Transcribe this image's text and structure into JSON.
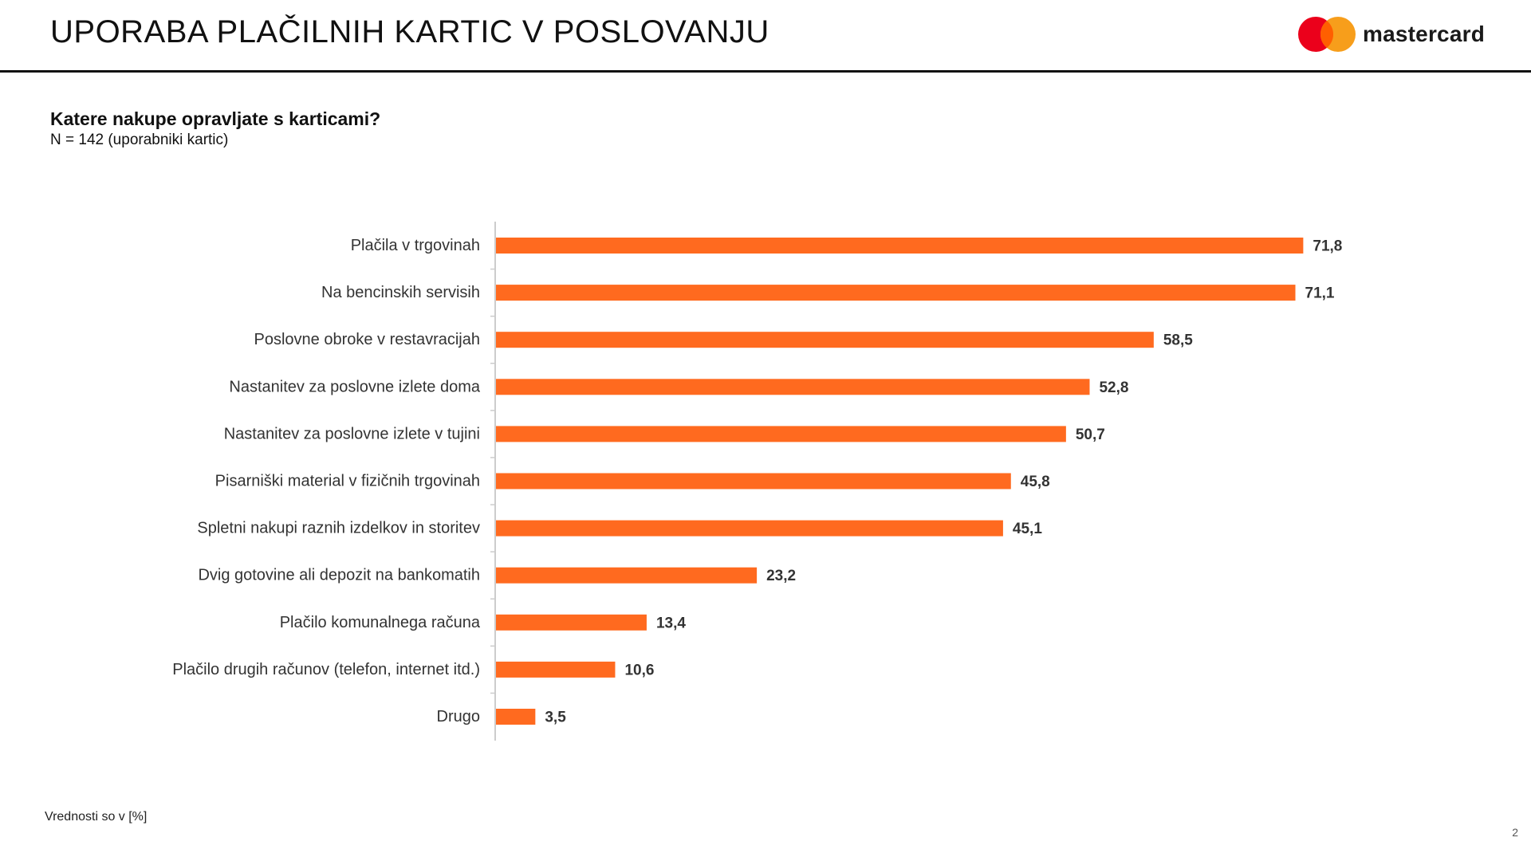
{
  "header": {
    "title": "UPORABA PLAČILNIH KARTIC V POSLOVANJU",
    "logo_text": "mastercard",
    "logo_colors": {
      "red": "#EB001B",
      "orange": "#F79E1B",
      "overlap": "#FF5F00"
    }
  },
  "question": "Katere nakupe opravljate s karticami?",
  "subtitle": "N = 142 (uporabniki kartic)",
  "footnote": "Vrednosti so v [%]",
  "page_number": "2",
  "colors": {
    "bar": "#FF6A1F",
    "axis": "#cccccc"
  },
  "chart_data": {
    "type": "bar",
    "orientation": "horizontal",
    "categories": [
      "Plačila v trgovinah",
      "Na bencinskih servisih",
      "Poslovne obroke v restavracijah",
      "Nastanitev za poslovne izlete doma",
      "Nastanitev za poslovne izlete v tujini",
      "Pisarniški material v fizičnih trgovinah",
      "Spletni nakupi raznih izdelkov in storitev",
      "Dvig gotovine ali depozit na bankomatih",
      "Plačilo komunalnega računa",
      "Plačilo drugih računov (telefon, internet itd.)",
      "Drugo"
    ],
    "values": [
      71.8,
      71.1,
      58.5,
      52.8,
      50.7,
      45.8,
      45.1,
      23.2,
      13.4,
      10.6,
      3.5
    ],
    "value_labels": [
      "71,8",
      "71,1",
      "58,5",
      "52,8",
      "50,7",
      "45,8",
      "45,1",
      "23,2",
      "13,4",
      "10,6",
      "3,5"
    ],
    "xlim": [
      0,
      100
    ],
    "grid": false,
    "legend": "none"
  }
}
